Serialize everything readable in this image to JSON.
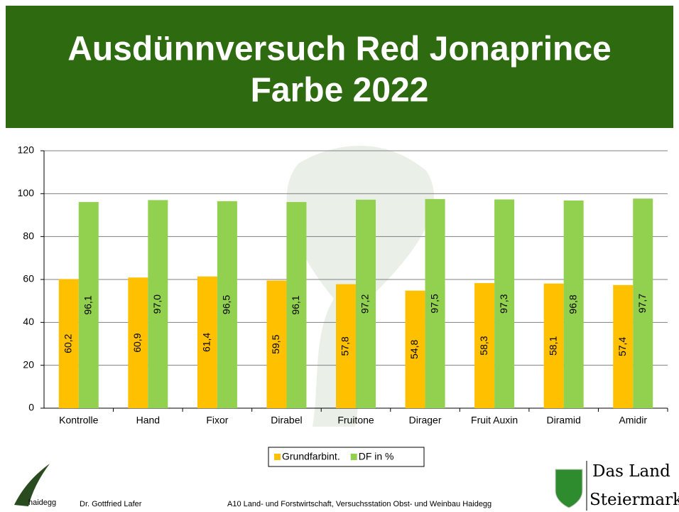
{
  "chart_data": {
    "type": "bar",
    "title": "Ausdünnversuch Red Jonaprince",
    "subtitle": "Farbe 2022",
    "categories": [
      "Kontrolle",
      "Hand",
      "Fixor",
      "Dirabel",
      "Fruitone",
      "Dirager",
      "Fruit Auxin",
      "Diramid",
      "Amidir"
    ],
    "series": [
      {
        "name": "Grundfarbint.",
        "color": "#ffc000",
        "values": [
          60.2,
          60.9,
          61.4,
          59.5,
          57.8,
          54.8,
          58.3,
          58.1,
          57.4
        ],
        "value_labels": [
          "60,2",
          "60,9",
          "61,4",
          "59,5",
          "57,8",
          "54,8",
          "58,3",
          "58,1",
          "57,4"
        ]
      },
      {
        "name": "DF in %",
        "color": "#92d050",
        "values": [
          96.1,
          97.0,
          96.5,
          96.1,
          97.2,
          97.5,
          97.3,
          96.8,
          97.7
        ],
        "value_labels": [
          "96,1",
          "97,0",
          "96,5",
          "96,1",
          "97,2",
          "97,5",
          "97,3",
          "96,8",
          "97,7"
        ]
      }
    ],
    "ylim": [
      0,
      120
    ],
    "yticks": [
      0,
      20,
      40,
      60,
      80,
      100,
      120
    ],
    "grid": true,
    "legend": "bottom"
  },
  "footer": {
    "logo": "haidegg",
    "author": "Dr. Gottfried Lafer",
    "institution": "A10 Land- und Forstwirtschaft, Versuchsstation Obst- und Weinbau Haidegg",
    "brand_line1": "Das Land",
    "brand_line2": "Steiermark"
  }
}
